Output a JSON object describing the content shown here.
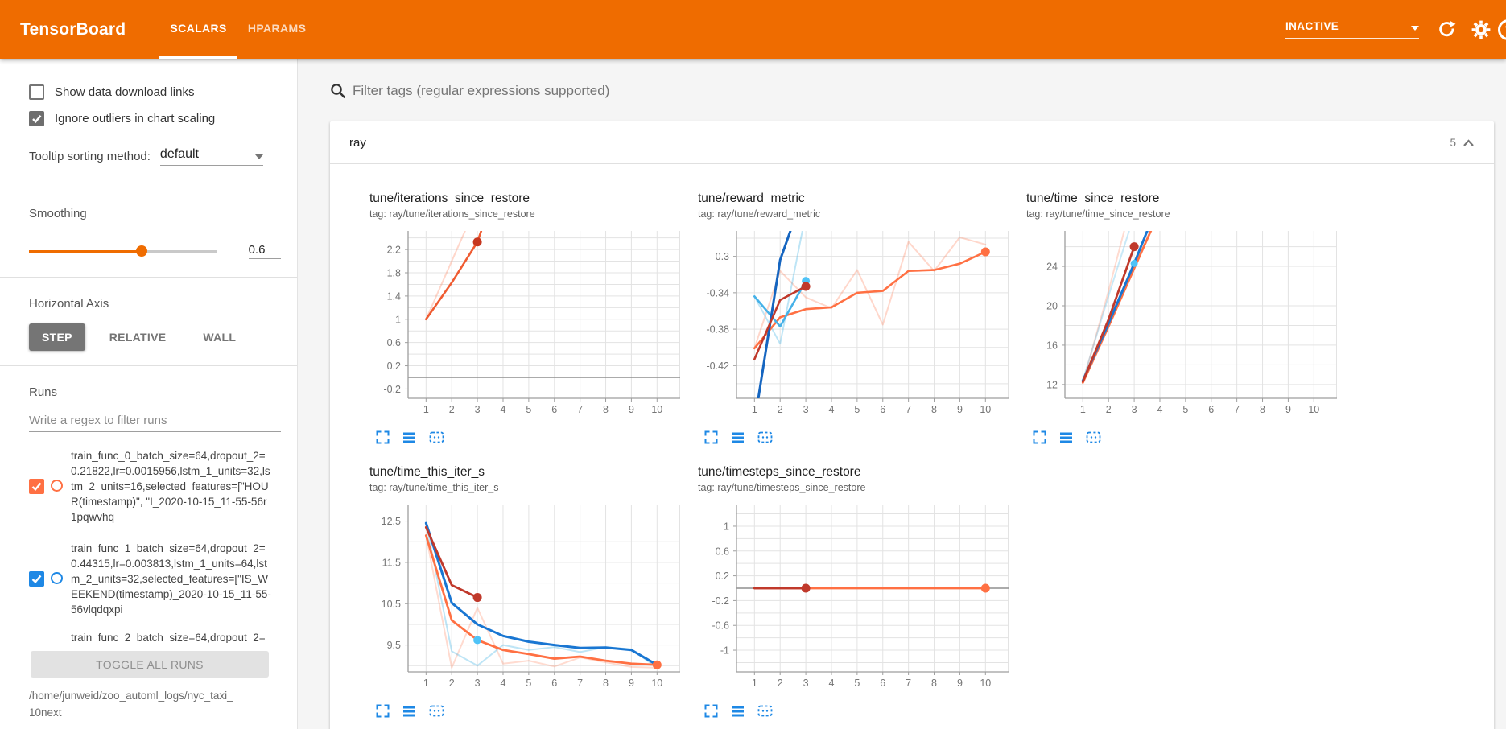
{
  "colors": {
    "accent": "#ef6c00",
    "run_orange": "#ff7043",
    "run_blue": "#1e88e5",
    "run_red": "#d32f2f",
    "chart_icon": "#1e88e5",
    "marker_cyan": "#4fc3f7",
    "marker_darkred": "#c0392b"
  },
  "header": {
    "title": "TensorBoard",
    "tabs": [
      {
        "label": "SCALARS",
        "active": true
      },
      {
        "label": "HPARAMS",
        "active": false
      }
    ],
    "status": "INACTIVE",
    "icons": [
      "dropdown-caret-icon",
      "refresh-icon",
      "settings-gear-icon",
      "help-icon"
    ],
    "help_glyph": "?"
  },
  "sidebar": {
    "checkboxes": [
      {
        "label": "Show data download links",
        "checked": false
      },
      {
        "label": "Ignore outliers in chart scaling",
        "checked": true
      }
    ],
    "tooltip_sorting": {
      "label": "Tooltip sorting method:",
      "value": "default"
    },
    "smoothing": {
      "label": "Smoothing",
      "value": "0.6",
      "fraction": 0.6
    },
    "horizontal_axis": {
      "label": "Horizontal Axis",
      "options": [
        "STEP",
        "RELATIVE",
        "WALL"
      ],
      "selected": "STEP"
    },
    "runs": {
      "label": "Runs",
      "filter_placeholder": "Write a regex to filter runs",
      "items": [
        {
          "color": "#ff7043",
          "checked": true,
          "partial": false,
          "lines": [
            "train_func_0_batch_size=64,dropout_2=",
            "0.21822,lr=0.0015956,lstm_1_units=32,ls",
            "tm_2_units=16,selected_features=[\"HOU",
            "R(timestamp)\", \"I_2020-10-15_11-55-56r",
            "1pqwvhq"
          ]
        },
        {
          "color": "#1e88e5",
          "checked": true,
          "partial": false,
          "lines": [
            "train_func_1_batch_size=64,dropout_2=",
            "0.44315,lr=0.003813,lstm_1_units=64,lst",
            "m_2_units=32,selected_features=[\"IS_W",
            "EEKEND(timestamp)_2020-10-15_11-55-",
            "56vlqdqxpi"
          ]
        },
        {
          "color": "#d32f2f",
          "checked": true,
          "partial": true,
          "lines": [
            "train_func_2_batch_size=64,dropout_2="
          ]
        }
      ],
      "toggle_all_label": "TOGGLE ALL RUNS"
    },
    "logdir_lines": [
      "/home/junweid/zoo_automl_logs/nyc_taxi_",
      "10next"
    ]
  },
  "main": {
    "filter_placeholder": "Filter tags (regular expressions supported)",
    "section": {
      "name": "ray",
      "count": "5"
    },
    "chart_toolbar_icons": [
      "fullscreen-icon",
      "expand-lines-icon",
      "fit-domain-icon"
    ]
  },
  "chart_data": [
    {
      "type": "line",
      "title": "tune/iterations_since_restore",
      "tag": "tag: ray/tune/iterations_since_restore",
      "xlabel": "",
      "ylabel": "",
      "grid": true,
      "legend": "none",
      "xticks": [
        1,
        2,
        3,
        4,
        5,
        6,
        7,
        8,
        9,
        10
      ],
      "xlim": [
        0.3,
        10.9
      ],
      "ylim": [
        -0.36,
        2.52
      ],
      "yticks": [
        [
          -0.2,
          "-0.2"
        ],
        [
          0.2,
          "0.2"
        ],
        [
          0.6,
          "0.6"
        ],
        [
          1,
          "1"
        ],
        [
          1.4,
          "1.4"
        ],
        [
          1.8,
          "1.8"
        ],
        [
          2.2,
          "2.2"
        ]
      ],
      "grid_y": [
        -0.2,
        0,
        0.2,
        0.4,
        0.6,
        0.8,
        1,
        1.2,
        1.4,
        1.6,
        1.8,
        2,
        2.2,
        2.4
      ],
      "zero_line": true,
      "series": [
        {
          "name": "train_func_0 (raw)",
          "color": "#ff7043",
          "width": 2,
          "opacity": 0.28,
          "points": [
            [
              1,
              1
            ],
            [
              2,
              2
            ],
            [
              3,
              3
            ]
          ]
        },
        {
          "name": "train_func_0 (smoothed)",
          "color": "#ef5b31",
          "width": 2.6,
          "opacity": 1,
          "points": [
            [
              1,
              1
            ],
            [
              2,
              1.63
            ],
            [
              3,
              2.33
            ],
            [
              3.6,
              3.1
            ]
          ]
        }
      ],
      "markers": [
        {
          "x": 3,
          "y": 2.33,
          "color": "#c6371f",
          "r": 5.5
        }
      ]
    },
    {
      "type": "line",
      "title": "tune/reward_metric",
      "tag": "tag: ray/tune/reward_metric",
      "xlabel": "",
      "ylabel": "",
      "grid": true,
      "legend": "none",
      "xticks": [
        1,
        2,
        3,
        4,
        5,
        6,
        7,
        8,
        9,
        10
      ],
      "xlim": [
        0.3,
        10.9
      ],
      "ylim": [
        -0.456,
        -0.272
      ],
      "yticks": [
        [
          -0.42,
          "-0.42"
        ],
        [
          -0.38,
          "-0.38"
        ],
        [
          -0.34,
          "-0.34"
        ],
        [
          -0.3,
          "-0.3"
        ]
      ],
      "grid_y": [
        -0.44,
        -0.42,
        -0.4,
        -0.38,
        -0.36,
        -0.34,
        -0.32,
        -0.3,
        -0.28
      ],
      "zero_line": false,
      "series": [
        {
          "name": "train_func_0 (raw)",
          "color": "#ff7043",
          "width": 2,
          "opacity": 0.28,
          "points": [
            [
              1,
              -0.401
            ],
            [
              2,
              -0.316
            ],
            [
              3,
              -0.345
            ],
            [
              4,
              -0.357
            ],
            [
              5,
              -0.315
            ],
            [
              6,
              -0.375
            ],
            [
              7,
              -0.284
            ],
            [
              8,
              -0.316
            ],
            [
              9,
              -0.279
            ],
            [
              10,
              -0.287
            ]
          ]
        },
        {
          "name": "train_func_1 (raw)",
          "color": "#29a8e0",
          "width": 2,
          "opacity": 0.3,
          "points": [
            [
              1,
              -0.344
            ],
            [
              2,
              -0.396
            ],
            [
              2.95,
              -0.26
            ]
          ]
        },
        {
          "name": "train_func_0 (smoothed)",
          "color": "#ff7043",
          "width": 2.6,
          "opacity": 1,
          "points": [
            [
              1,
              -0.401
            ],
            [
              2,
              -0.367
            ],
            [
              3,
              -0.358
            ],
            [
              4,
              -0.356
            ],
            [
              5,
              -0.34
            ],
            [
              6,
              -0.338
            ],
            [
              7,
              -0.316
            ],
            [
              8,
              -0.315
            ],
            [
              9,
              -0.308
            ],
            [
              10,
              -0.295
            ]
          ]
        },
        {
          "name": "train_func_1 (smoothed)",
          "color": "#45b1e8",
          "width": 2.6,
          "opacity": 1,
          "points": [
            [
              1,
              -0.344
            ],
            [
              2,
              -0.377
            ],
            [
              3,
              -0.327
            ]
          ]
        },
        {
          "name": "train_func_1b",
          "color": "#1565c0",
          "width": 3,
          "opacity": 1,
          "points": [
            [
              1.15,
              -0.456
            ],
            [
              2,
              -0.304
            ],
            [
              2.55,
              -0.26
            ]
          ]
        },
        {
          "name": "train_func_2 (smoothed)",
          "color": "#c0392b",
          "width": 2.6,
          "opacity": 1,
          "points": [
            [
              1,
              -0.413
            ],
            [
              2,
              -0.348
            ],
            [
              3,
              -0.333
            ]
          ]
        }
      ],
      "markers": [
        {
          "x": 3,
          "y": -0.327,
          "color": "#4fc3f7",
          "r": 5
        },
        {
          "x": 3,
          "y": -0.333,
          "color": "#c0392b",
          "r": 5.5
        },
        {
          "x": 10,
          "y": -0.295,
          "color": "#ff7043",
          "r": 5.5
        }
      ]
    },
    {
      "type": "line",
      "title": "tune/time_since_restore",
      "tag": "tag: ray/tune/time_since_restore",
      "xlabel": "",
      "ylabel": "",
      "grid": true,
      "legend": "none",
      "xticks": [
        1,
        2,
        3,
        4,
        5,
        6,
        7,
        8,
        9,
        10
      ],
      "xlim": [
        0.3,
        10.9
      ],
      "ylim": [
        10.6,
        27.6
      ],
      "yticks": [
        [
          12,
          "12"
        ],
        [
          16,
          "16"
        ],
        [
          20,
          "20"
        ],
        [
          24,
          "24"
        ]
      ],
      "grid_y": [
        12,
        14,
        16,
        18,
        20,
        22,
        24,
        26
      ],
      "zero_line": false,
      "series": [
        {
          "name": "train_func_0 (raw)",
          "color": "#ff7043",
          "width": 2,
          "opacity": 0.25,
          "points": [
            [
              1,
              12.2
            ],
            [
              2,
              21.5
            ],
            [
              2.65,
              28
            ]
          ]
        },
        {
          "name": "train_func_1 (raw)",
          "color": "#29a8e0",
          "width": 2,
          "opacity": 0.25,
          "points": [
            [
              1,
              12.4
            ],
            [
              2,
              21
            ],
            [
              2.85,
              28
            ]
          ]
        },
        {
          "name": "train_func_0 (smoothed)",
          "color": "#ff7043",
          "width": 2.8,
          "opacity": 1,
          "points": [
            [
              1,
              12.2
            ],
            [
              2,
              17.9
            ],
            [
              3,
              23.8
            ],
            [
              3.75,
              28.2
            ]
          ]
        },
        {
          "name": "train_func_1 (smoothed)",
          "color": "#1976d2",
          "width": 3,
          "opacity": 1,
          "points": [
            [
              1,
              12.4
            ],
            [
              2,
              18.2
            ],
            [
              3,
              24.3
            ],
            [
              3.6,
              28.2
            ]
          ]
        },
        {
          "name": "train_func_2 (smoothed)",
          "color": "#c0392b",
          "width": 2.8,
          "opacity": 1,
          "points": [
            [
              1,
              12.3
            ],
            [
              2,
              18.6
            ],
            [
              3,
              26
            ]
          ]
        }
      ],
      "markers": [
        {
          "x": 3,
          "y": 24.3,
          "color": "#4fc3f7",
          "r": 4.5
        },
        {
          "x": 3,
          "y": 26,
          "color": "#c0392b",
          "r": 5.5
        }
      ]
    },
    {
      "type": "line",
      "title": "tune/time_this_iter_s",
      "tag": "tag: ray/tune/time_this_iter_s",
      "xlabel": "",
      "ylabel": "",
      "grid": true,
      "legend": "none",
      "xticks": [
        1,
        2,
        3,
        4,
        5,
        6,
        7,
        8,
        9,
        10
      ],
      "xlim": [
        0.3,
        10.9
      ],
      "ylim": [
        8.85,
        12.9
      ],
      "yticks": [
        [
          9.5,
          "9.5"
        ],
        [
          10.5,
          "10.5"
        ],
        [
          11.5,
          "11.5"
        ],
        [
          12.5,
          "12.5"
        ]
      ],
      "grid_y": [
        9,
        9.5,
        10,
        10.5,
        11,
        11.5,
        12,
        12.5
      ],
      "zero_line": false,
      "series": [
        {
          "name": "train_func_0 (raw)",
          "color": "#ff7043",
          "width": 2,
          "opacity": 0.25,
          "points": [
            [
              1,
              12.15
            ],
            [
              2,
              8.95
            ],
            [
              3,
              10.4
            ],
            [
              4,
              9.05
            ],
            [
              5,
              9.12
            ],
            [
              6,
              8.98
            ],
            [
              7,
              9.2
            ],
            [
              8,
              9.08
            ],
            [
              9,
              8.97
            ],
            [
              10,
              8.95
            ]
          ]
        },
        {
          "name": "train_func_1 (raw)",
          "color": "#29a8e0",
          "width": 2,
          "opacity": 0.3,
          "points": [
            [
              1,
              12.45
            ],
            [
              2,
              9.35
            ],
            [
              3,
              9.0
            ],
            [
              4,
              9.5
            ],
            [
              5,
              9.38
            ],
            [
              6,
              9.45
            ],
            [
              7,
              9.33
            ],
            [
              8,
              9.45
            ],
            [
              9,
              9.4
            ],
            [
              10,
              8.95
            ]
          ]
        },
        {
          "name": "train_func_0 (smoothed)",
          "color": "#ff7043",
          "width": 2.8,
          "opacity": 1,
          "points": [
            [
              1,
              12.15
            ],
            [
              2,
              10.1
            ],
            [
              3,
              9.62
            ],
            [
              4,
              9.38
            ],
            [
              5,
              9.28
            ],
            [
              6,
              9.17
            ],
            [
              7,
              9.22
            ],
            [
              8,
              9.12
            ],
            [
              9,
              9.05
            ],
            [
              10,
              9.02
            ]
          ]
        },
        {
          "name": "train_func_1 (smoothed)",
          "color": "#1976d2",
          "width": 3,
          "opacity": 1,
          "points": [
            [
              1,
              12.45
            ],
            [
              2,
              10.52
            ],
            [
              3,
              10.0
            ],
            [
              4,
              9.72
            ],
            [
              5,
              9.58
            ],
            [
              6,
              9.5
            ],
            [
              7,
              9.43
            ],
            [
              8,
              9.44
            ],
            [
              9,
              9.38
            ],
            [
              10,
              9.02
            ]
          ]
        },
        {
          "name": "train_func_2 (smoothed)",
          "color": "#c0392b",
          "width": 2.8,
          "opacity": 1,
          "points": [
            [
              1,
              12.35
            ],
            [
              2,
              10.95
            ],
            [
              3,
              10.65
            ]
          ]
        }
      ],
      "markers": [
        {
          "x": 3,
          "y": 10.65,
          "color": "#c0392b",
          "r": 5.5
        },
        {
          "x": 3,
          "y": 9.62,
          "color": "#4fc3f7",
          "r": 5
        },
        {
          "x": 10,
          "y": 9.02,
          "color": "#ff7043",
          "r": 5.5
        }
      ]
    },
    {
      "type": "line",
      "title": "tune/timesteps_since_restore",
      "tag": "tag: ray/tune/timesteps_since_restore",
      "xlabel": "",
      "ylabel": "",
      "grid": true,
      "legend": "none",
      "xticks": [
        1,
        2,
        3,
        4,
        5,
        6,
        7,
        8,
        9,
        10
      ],
      "xlim": [
        0.3,
        10.9
      ],
      "ylim": [
        -1.35,
        1.35
      ],
      "yticks": [
        [
          1,
          "1"
        ],
        [
          0.6,
          "0.6"
        ],
        [
          0.2,
          "0.2"
        ],
        [
          -0.2,
          "-0.2"
        ],
        [
          -0.6,
          "-0.6"
        ],
        [
          -1,
          "-1"
        ]
      ],
      "grid_y": [
        -1.2,
        -1,
        -0.8,
        -0.6,
        -0.4,
        -0.2,
        0,
        0.2,
        0.4,
        0.6,
        0.8,
        1,
        1.2
      ],
      "zero_line": true,
      "series": [
        {
          "name": "train_func_0 (smoothed)",
          "color": "#ff7043",
          "width": 2.8,
          "opacity": 1,
          "points": [
            [
              1,
              0
            ],
            [
              10,
              0
            ]
          ]
        },
        {
          "name": "train_func_2 (smoothed)",
          "color": "#c0392b",
          "width": 2.8,
          "opacity": 1,
          "points": [
            [
              1,
              0
            ],
            [
              3,
              0
            ]
          ]
        }
      ],
      "markers": [
        {
          "x": 3,
          "y": 0,
          "color": "#c0392b",
          "r": 5.5
        },
        {
          "x": 10,
          "y": 0,
          "color": "#ff7043",
          "r": 5.5
        }
      ]
    }
  ]
}
